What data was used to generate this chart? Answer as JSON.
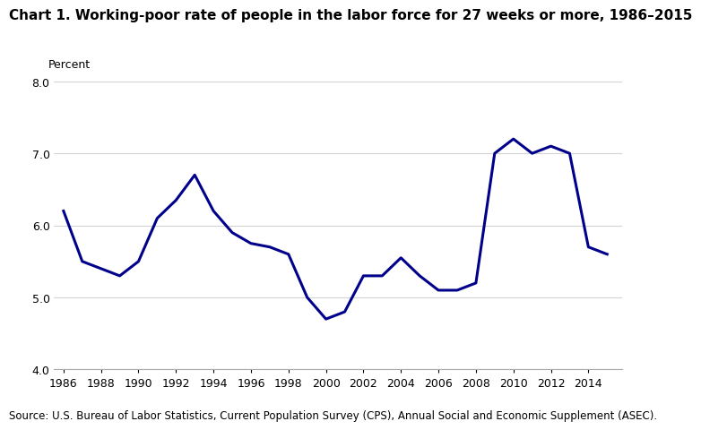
{
  "title": "Chart 1. Working-poor rate of people in the labor force for 27 weeks or more, 1986–2015",
  "ylabel_text": "Percent",
  "source": "Source: U.S. Bureau of Labor Statistics, Current Population Survey (CPS), Annual Social and Economic Supplement (ASEC).",
  "line_color": "#00008B",
  "line_width": 2.2,
  "ylim": [
    4.0,
    8.0
  ],
  "yticks": [
    4.0,
    5.0,
    6.0,
    7.0,
    8.0
  ],
  "xtick_labels": [
    "1986",
    "1988",
    "1990",
    "1992",
    "1994",
    "1996",
    "1998",
    "2000",
    "2002",
    "2004",
    "2006",
    "2008",
    "2010",
    "2012",
    "2014"
  ],
  "years": [
    1986,
    1987,
    1988,
    1989,
    1990,
    1991,
    1992,
    1993,
    1994,
    1995,
    1996,
    1997,
    1998,
    1999,
    2000,
    2001,
    2002,
    2003,
    2004,
    2005,
    2006,
    2007,
    2008,
    2009,
    2010,
    2011,
    2012,
    2013,
    2014,
    2015
  ],
  "values": [
    6.2,
    5.5,
    5.4,
    5.3,
    5.5,
    6.1,
    6.35,
    6.7,
    6.2,
    5.9,
    5.75,
    5.7,
    5.6,
    5.0,
    4.7,
    4.8,
    5.3,
    5.3,
    5.55,
    5.3,
    5.1,
    5.1,
    5.2,
    7.0,
    7.2,
    7.0,
    7.1,
    7.0,
    5.7,
    5.6
  ],
  "xlim_left": 1985.5,
  "xlim_right": 2015.8,
  "title_fontsize": 11,
  "tick_fontsize": 9,
  "source_fontsize": 8.5
}
